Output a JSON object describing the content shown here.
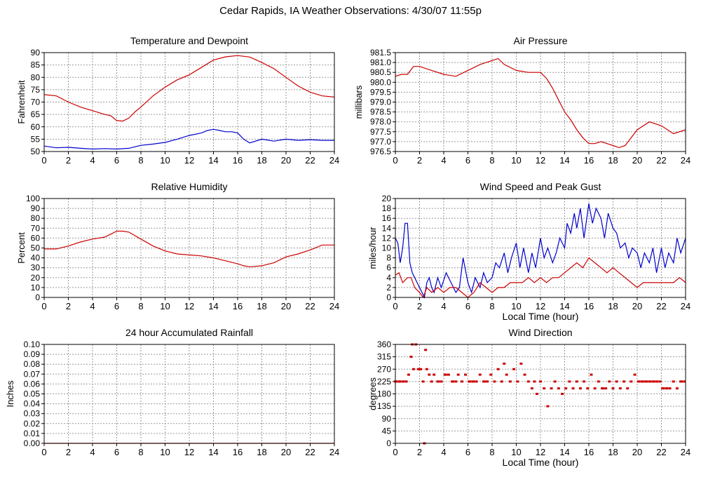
{
  "page": {
    "title": "Cedar Rapids, IA Weather Observations: 4/30/07 11:55p"
  },
  "colors": {
    "red": "#cc0000",
    "blue": "#0000cc",
    "grid": "#999999",
    "axis": "#000000"
  },
  "chart_data": [
    {
      "id": "temp",
      "type": "line",
      "title": "Temperature and Dewpoint",
      "xlabel": "",
      "ylabel": "Fahrenheit",
      "xlim": [
        0,
        24
      ],
      "ylim": [
        50,
        90
      ],
      "xticks": [
        "0",
        "2",
        "4",
        "6",
        "8",
        "10",
        "12",
        "14",
        "16",
        "18",
        "20",
        "22",
        "24"
      ],
      "yticks": [
        "50",
        "55",
        "60",
        "65",
        "70",
        "75",
        "80",
        "85",
        "90"
      ],
      "grid": true,
      "series": [
        {
          "color": "#cc0000",
          "x": [
            0,
            1,
            2,
            3,
            4,
            5,
            5.5,
            6,
            6.5,
            7,
            7.5,
            8,
            9,
            10,
            11,
            12,
            13,
            14,
            15,
            16,
            17,
            18,
            19,
            20,
            21,
            22,
            23,
            24
          ],
          "y": [
            73,
            72.5,
            70,
            68,
            66.5,
            65,
            64.5,
            62.5,
            62.3,
            63.5,
            66,
            68,
            72.5,
            76,
            79,
            81,
            84,
            87,
            88.3,
            88.8,
            88.2,
            86,
            83.5,
            80,
            76.5,
            74,
            72.5,
            72
          ]
        },
        {
          "color": "#0000cc",
          "x": [
            0,
            1,
            2,
            3,
            4,
            5,
            6,
            7,
            8,
            9,
            10,
            11,
            12,
            13,
            13.5,
            14,
            14.5,
            15,
            15.5,
            16,
            16.5,
            17,
            18,
            19,
            20,
            21,
            22,
            23,
            24
          ],
          "y": [
            52.2,
            51.5,
            51.7,
            51.3,
            51,
            51.2,
            51,
            51.3,
            52.5,
            53,
            53.7,
            55,
            56.5,
            57.5,
            58.5,
            59,
            58.5,
            58,
            58,
            57.5,
            55,
            53.5,
            55,
            54.2,
            55,
            54.5,
            54.8,
            54.5,
            54.5
          ]
        }
      ]
    },
    {
      "id": "pressure",
      "type": "line",
      "title": "Air Pressure",
      "xlabel": "",
      "ylabel": "millibars",
      "xlim": [
        0,
        24
      ],
      "ylim": [
        976.5,
        981.5
      ],
      "xticks": [
        "0",
        "2",
        "4",
        "6",
        "8",
        "10",
        "12",
        "14",
        "16",
        "18",
        "20",
        "22",
        "24"
      ],
      "yticks": [
        "976.5",
        "977.0",
        "977.5",
        "978.0",
        "978.5",
        "979.0",
        "979.5",
        "980.0",
        "980.5",
        "981.0",
        "981.5"
      ],
      "grid": true,
      "series": [
        {
          "color": "#cc0000",
          "x": [
            0,
            0.5,
            1,
            1.5,
            2,
            3,
            4,
            5,
            6,
            7,
            8,
            8.5,
            9,
            10,
            11,
            12,
            12.5,
            13,
            13.5,
            14,
            14.5,
            15,
            15.5,
            16,
            16.5,
            17,
            17.5,
            18,
            18.5,
            19,
            19.5,
            20,
            21,
            22,
            23,
            24
          ],
          "y": [
            980.3,
            980.4,
            980.4,
            980.8,
            980.8,
            980.6,
            980.4,
            980.3,
            980.6,
            980.9,
            981.1,
            981.2,
            980.9,
            980.6,
            980.5,
            980.5,
            980.2,
            979.7,
            979.1,
            978.5,
            978.1,
            977.6,
            977.2,
            976.9,
            976.9,
            977.0,
            976.9,
            976.8,
            976.7,
            976.8,
            977.2,
            977.6,
            978.0,
            977.8,
            977.4,
            977.6
          ]
        }
      ]
    },
    {
      "id": "humidity",
      "type": "line",
      "title": "Relative Humidity",
      "xlabel": "",
      "ylabel": "Percent",
      "xlim": [
        0,
        24
      ],
      "ylim": [
        0,
        100
      ],
      "xticks": [
        "0",
        "2",
        "4",
        "6",
        "8",
        "10",
        "12",
        "14",
        "16",
        "18",
        "20",
        "22",
        "24"
      ],
      "yticks": [
        "0",
        "10",
        "20",
        "30",
        "40",
        "50",
        "60",
        "70",
        "80",
        "90",
        "100"
      ],
      "grid": true,
      "series": [
        {
          "color": "#cc0000",
          "x": [
            0,
            1,
            2,
            3,
            4,
            5,
            5.5,
            6,
            6.5,
            7,
            8,
            9,
            10,
            11,
            12,
            13,
            14,
            15,
            16,
            16.5,
            17,
            18,
            19,
            20,
            21,
            22,
            23,
            24
          ],
          "y": [
            49,
            49,
            52,
            56,
            59,
            61,
            64,
            67,
            67,
            66,
            59,
            52,
            47,
            44,
            43,
            42,
            40,
            37,
            34,
            32,
            31,
            32,
            35,
            41,
            44,
            48,
            53,
            53
          ]
        }
      ]
    },
    {
      "id": "wind",
      "type": "line",
      "title": "Wind Speed and Peak Gust",
      "xlabel": "Local Time (hour)",
      "ylabel": "miles/hour",
      "xlim": [
        0,
        24
      ],
      "ylim": [
        0,
        20
      ],
      "xticks": [
        "0",
        "2",
        "4",
        "6",
        "8",
        "10",
        "12",
        "14",
        "16",
        "18",
        "20",
        "22",
        "24"
      ],
      "yticks": [
        "0",
        "2",
        "4",
        "6",
        "8",
        "10",
        "12",
        "14",
        "16",
        "18",
        "20"
      ],
      "grid": true,
      "series": [
        {
          "color": "#0000cc",
          "x": [
            0,
            0.2,
            0.4,
            0.6,
            0.8,
            1,
            1.2,
            1.4,
            1.6,
            1.8,
            2,
            2.2,
            2.4,
            2.6,
            2.8,
            3,
            3.2,
            3.5,
            3.8,
            4.2,
            4.6,
            5,
            5.3,
            5.6,
            6,
            6.3,
            6.6,
            7,
            7.3,
            7.6,
            8,
            8.3,
            8.6,
            9,
            9.3,
            9.6,
            10,
            10.3,
            10.6,
            11,
            11.3,
            11.6,
            12,
            12.3,
            12.6,
            13,
            13.3,
            13.6,
            14,
            14.2,
            14.5,
            14.8,
            15,
            15.3,
            15.6,
            16,
            16.3,
            16.6,
            17,
            17.3,
            17.6,
            18,
            18.3,
            18.6,
            19,
            19.3,
            19.6,
            20,
            20.3,
            20.6,
            21,
            21.3,
            21.6,
            22,
            22.3,
            22.6,
            23,
            23.3,
            23.6,
            24
          ],
          "y": [
            12,
            11,
            7,
            10,
            15,
            15,
            7,
            5,
            4,
            3,
            2,
            1,
            0,
            3,
            4,
            2,
            1,
            4,
            2,
            5,
            3,
            1,
            2,
            8,
            3,
            1,
            4,
            2,
            5,
            3,
            4,
            7,
            6,
            9,
            5,
            8,
            11,
            6,
            10,
            5,
            9,
            6,
            12,
            8,
            10,
            7,
            9,
            12,
            10,
            15,
            13,
            17,
            14,
            18,
            12,
            19,
            15,
            18,
            16,
            12,
            17,
            14,
            13,
            10,
            11,
            8,
            10,
            9,
            6,
            9,
            7,
            10,
            5,
            10,
            6,
            9,
            7,
            12,
            9,
            12
          ]
        },
        {
          "color": "#cc0000",
          "x": [
            0,
            0.3,
            0.6,
            1,
            1.3,
            1.6,
            2,
            2.3,
            2.6,
            3,
            3.5,
            4,
            4.5,
            5,
            5.5,
            6,
            6.5,
            7,
            7.5,
            8,
            8.5,
            9,
            9.5,
            10,
            10.5,
            11,
            11.5,
            12,
            12.5,
            13,
            13.5,
            14,
            14.5,
            15,
            15.5,
            16,
            16.5,
            17,
            17.5,
            18,
            18.5,
            19,
            19.5,
            20,
            20.5,
            21,
            21.5,
            22,
            22.5,
            23,
            23.5,
            24
          ],
          "y": [
            4.5,
            5,
            3,
            4,
            4,
            2,
            1,
            0,
            2,
            1,
            2,
            1,
            2,
            2,
            1,
            0,
            1,
            3,
            2,
            1,
            2,
            2,
            3,
            3,
            3,
            4,
            3,
            4,
            3,
            4,
            4,
            5,
            6,
            7,
            6,
            8,
            7,
            6,
            5,
            6,
            5,
            4,
            3,
            2,
            3,
            3,
            3,
            3,
            3,
            3,
            4,
            3
          ]
        }
      ]
    },
    {
      "id": "rain",
      "type": "line",
      "title": "24 hour Accumulated Rainfall",
      "xlabel": "",
      "ylabel": "Inches",
      "xlim": [
        0,
        24
      ],
      "ylim": [
        0,
        0.1
      ],
      "xticks": [
        "0",
        "2",
        "4",
        "6",
        "8",
        "10",
        "12",
        "14",
        "16",
        "18",
        "20",
        "22",
        "24"
      ],
      "yticks": [
        "0.00",
        "0.01",
        "0.02",
        "0.03",
        "0.04",
        "0.05",
        "0.06",
        "0.07",
        "0.08",
        "0.09",
        "0.10"
      ],
      "grid": true,
      "series": [
        {
          "color": "#cc0000",
          "x": [
            0,
            24
          ],
          "y": [
            0,
            0
          ]
        }
      ]
    },
    {
      "id": "winddir",
      "type": "scatter",
      "title": "Wind Direction",
      "xlabel": "Local Time (hour)",
      "ylabel": "degrees",
      "xlim": [
        0,
        24
      ],
      "ylim": [
        0,
        360
      ],
      "xticks": [
        "0",
        "2",
        "4",
        "6",
        "8",
        "10",
        "12",
        "14",
        "16",
        "18",
        "20",
        "22",
        "24"
      ],
      "yticks": [
        "0",
        "45",
        "90",
        "135",
        "180",
        "225",
        "270",
        "315",
        "360"
      ],
      "grid": true,
      "series": [
        {
          "color": "#cc0000",
          "x": [
            0,
            0.3,
            0.6,
            0.9,
            1.1,
            1.3,
            1.4,
            1.5,
            1.7,
            1.9,
            2.1,
            2.3,
            2.4,
            2.5,
            2.6,
            2.8,
            3.0,
            3.2,
            3.5,
            3.8,
            4.1,
            4.4,
            4.7,
            5.0,
            5.2,
            5.5,
            5.8,
            6.1,
            6.4,
            6.7,
            7.0,
            7.3,
            7.6,
            7.9,
            8.2,
            8.5,
            8.8,
            9.0,
            9.2,
            9.5,
            9.8,
            10.1,
            10.4,
            10.7,
            11.0,
            11.3,
            11.5,
            11.7,
            12.0,
            12.3,
            12.6,
            12.9,
            13.2,
            13.5,
            13.8,
            14.1,
            14.4,
            14.7,
            15.0,
            15.3,
            15.6,
            15.9,
            16.2,
            16.5,
            16.8,
            17.1,
            17.4,
            17.7,
            18.0,
            18.3,
            18.6,
            18.9,
            19.2,
            19.5,
            19.8,
            20.1,
            20.4,
            20.7,
            21.0,
            21.3,
            21.6,
            21.9,
            22.1,
            22.4,
            22.7,
            23.0,
            23.3,
            23.6,
            23.9
          ],
          "y": [
            225,
            225,
            225,
            225,
            250,
            315,
            360,
            270,
            360,
            270,
            270,
            225,
            0,
            340,
            270,
            250,
            225,
            250,
            225,
            225,
            250,
            250,
            225,
            225,
            250,
            225,
            250,
            225,
            225,
            225,
            250,
            225,
            225,
            250,
            225,
            270,
            225,
            290,
            250,
            225,
            270,
            225,
            290,
            250,
            225,
            200,
            225,
            180,
            225,
            200,
            135,
            200,
            225,
            200,
            180,
            200,
            225,
            200,
            225,
            200,
            225,
            200,
            250,
            200,
            225,
            200,
            200,
            225,
            200,
            225,
            200,
            225,
            200,
            225,
            250,
            225,
            225,
            225,
            225,
            225,
            225,
            225,
            200,
            200,
            200,
            225,
            200,
            225,
            225
          ]
        }
      ]
    }
  ]
}
